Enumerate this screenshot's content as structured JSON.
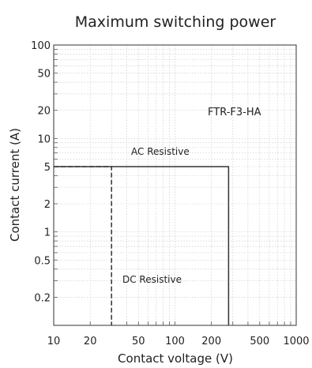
{
  "chart_data": {
    "type": "line",
    "title": "Maximum switching power",
    "xlabel": "Contact voltage (V)",
    "ylabel": "Contact current (A)",
    "x_scale": "log",
    "y_scale": "log",
    "xlim": [
      10,
      1000
    ],
    "ylim": [
      0.1,
      100
    ],
    "x_ticks": [
      10,
      20,
      50,
      100,
      200,
      500,
      1000
    ],
    "x_tick_labels": [
      "10",
      "20",
      "50",
      "100",
      "200",
      "500",
      "1000"
    ],
    "y_ticks": [
      0.2,
      0.5,
      1,
      2,
      5,
      10,
      20,
      50,
      100
    ],
    "y_tick_labels": [
      "0.2",
      "0.5",
      "1",
      "2",
      "5",
      "10",
      "20",
      "50",
      "100"
    ],
    "grid": true,
    "model_label": "FTR-F3-HA",
    "series": [
      {
        "name": "AC Resistive",
        "style": "solid",
        "x": [
          10,
          277,
          277
        ],
        "y": [
          5,
          5,
          0.1
        ]
      },
      {
        "name": "DC Resistive",
        "style": "dashed",
        "x": [
          10,
          30,
          30
        ],
        "y": [
          5,
          5,
          0.1
        ]
      }
    ]
  }
}
